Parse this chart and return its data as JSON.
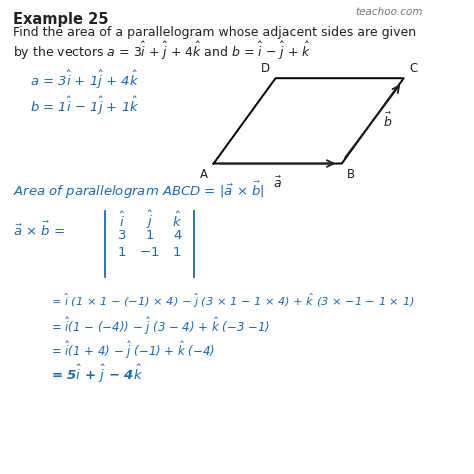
{
  "title": "Example 25",
  "line1": "Find the area of a parallelogram whose adjacent sides are given",
  "line2": "by the vectors $a$ = 3$\\hat{i}$ + $\\hat{j}$ + 4$\\hat{k}$ and $b$ = $\\hat{i}$ − $\\hat{j}$ + $\\hat{k}$",
  "watermark": "teachoo.com",
  "blue": "#1a6cb5",
  "dark": "#222222",
  "bg": "#ffffff",
  "vec_a": "$a$ = 3$\\hat{i}$ + 1$\\hat{j}$ + 4$\\hat{k}$",
  "vec_b": "$b$ = 1$\\hat{i}$ − 1$\\hat{j}$ + 1$\\hat{k}$",
  "area_line": "Area of parallelogram ABCD = $|\\vec{a}$ × $\\vec{b}|$",
  "cross_lhs": "$\\vec{a}$ × $\\vec{b}$ =",
  "eq1": "= $\\hat{i}$ (1 × 1 − (−1) × 4) − $\\hat{j}$ (3 × 1 − 1 × 4) + $\\hat{k}$ (3 × −1 − 1 × 1)",
  "eq2": "= $\\hat{i}$(1 − (−4)) − $\\hat{j}$ (3 − 4) + $\\hat{k}$ (−3 −1)",
  "eq3": "= $\\hat{i}$(1 + 4) − $\\hat{j}$ (−1) + $\\hat{k}$ (−4)",
  "eq4": "= 5$\\hat{i}$ + $\\hat{j}$ − 4$\\hat{k}$",
  "para_A": [
    0.5,
    0.655
  ],
  "para_B": [
    0.8,
    0.655
  ],
  "para_C": [
    0.945,
    0.835
  ],
  "para_D": [
    0.645,
    0.835
  ]
}
